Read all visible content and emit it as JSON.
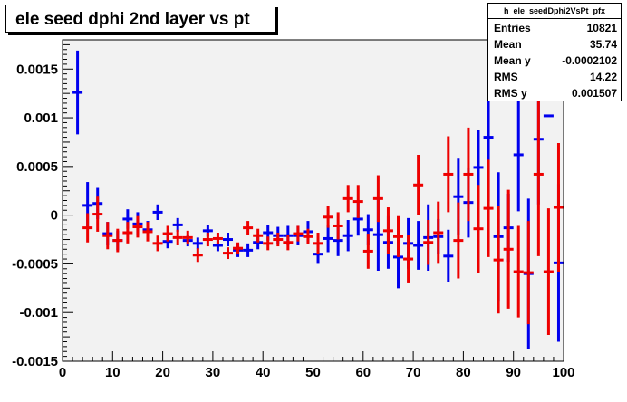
{
  "title": "ele seed dphi 2nd layer vs pt",
  "stats": {
    "name": "h_ele_seedDphi2VsPt_pfx",
    "rows": [
      {
        "label": "Entries",
        "value": "10821"
      },
      {
        "label": "Mean",
        "value": "35.74"
      },
      {
        "label": "Mean y",
        "value": "-0.0002102"
      },
      {
        "label": "RMS",
        "value": "14.22"
      },
      {
        "label": "RMS y",
        "value": "0.001507"
      }
    ]
  },
  "colors": {
    "blue": "#0000ee",
    "red": "#ee0000",
    "frame_bg": "#f2f2f2"
  },
  "chart_data": {
    "type": "scatter",
    "title": "ele seed dphi 2nd layer vs pt",
    "xlabel": "",
    "ylabel": "",
    "xlim": [
      0,
      100
    ],
    "ylim": [
      -0.0015,
      0.0018
    ],
    "grid": false,
    "x_tick_labels": [
      "0",
      "10",
      "20",
      "30",
      "40",
      "50",
      "60",
      "70",
      "80",
      "90",
      "100"
    ],
    "y_ticks": [
      {
        "value": -0.0015,
        "label": "-0.0015"
      },
      {
        "value": -0.001,
        "label": "-0.001"
      },
      {
        "value": -0.0005,
        "label": "-0.0005"
      },
      {
        "value": 0,
        "label": "0"
      },
      {
        "value": 0.0005,
        "label": "0.0005"
      },
      {
        "value": 0.001,
        "label": "0.001"
      },
      {
        "value": 0.0015,
        "label": "0.0015"
      }
    ],
    "series": [
      {
        "color": "blue",
        "points": [
          {
            "x": 3,
            "y": 0.00126,
            "err": 0.00043
          },
          {
            "x": 5,
            "y": 0.0001,
            "err": 0.00024
          },
          {
            "x": 7,
            "y": 0.00012,
            "err": 0.00016
          },
          {
            "x": 9,
            "y": -0.00019,
            "err": 0.00012
          },
          {
            "x": 11,
            "y": -0.00026,
            "err": 0.0001
          },
          {
            "x": 13,
            "y": -4e-05,
            "err": 0.0001
          },
          {
            "x": 15,
            "y": -9e-05,
            "err": 0.00012
          },
          {
            "x": 17,
            "y": -0.00015,
            "err": 9e-05
          },
          {
            "x": 19,
            "y": 3e-05,
            "err": 8e-05
          },
          {
            "x": 21,
            "y": -0.00027,
            "err": 7e-05
          },
          {
            "x": 23,
            "y": -0.0001,
            "err": 7e-05
          },
          {
            "x": 25,
            "y": -0.00026,
            "err": 6e-05
          },
          {
            "x": 27,
            "y": -0.00029,
            "err": 6e-05
          },
          {
            "x": 29,
            "y": -0.00016,
            "err": 6e-05
          },
          {
            "x": 31,
            "y": -0.00031,
            "err": 6e-05
          },
          {
            "x": 33,
            "y": -0.00025,
            "err": 7e-05
          },
          {
            "x": 35,
            "y": -0.00036,
            "err": 7e-05
          },
          {
            "x": 37,
            "y": -0.00036,
            "err": 7e-05
          },
          {
            "x": 39,
            "y": -0.00028,
            "err": 7e-05
          },
          {
            "x": 41,
            "y": -0.00018,
            "err": 8e-05
          },
          {
            "x": 43,
            "y": -0.00021,
            "err": 9e-05
          },
          {
            "x": 45,
            "y": -0.00021,
            "err": 0.0001
          },
          {
            "x": 47,
            "y": -0.00021,
            "err": 0.0001
          },
          {
            "x": 49,
            "y": -0.00017,
            "err": 0.00011
          },
          {
            "x": 51,
            "y": -0.0004,
            "err": 0.0001
          },
          {
            "x": 53,
            "y": -0.00024,
            "err": 0.00014
          },
          {
            "x": 55,
            "y": -0.00026,
            "err": 0.00016
          },
          {
            "x": 57,
            "y": -0.00021,
            "err": 0.00016
          },
          {
            "x": 59,
            "y": -4e-05,
            "err": 0.00017
          },
          {
            "x": 61,
            "y": -0.00015,
            "err": 0.00016
          },
          {
            "x": 63,
            "y": -0.0002,
            "err": 0.00037
          },
          {
            "x": 65,
            "y": -0.00028,
            "err": 0.00027
          },
          {
            "x": 67,
            "y": -0.00043,
            "err": 0.00032
          },
          {
            "x": 69,
            "y": -0.00029,
            "err": 0.00026
          },
          {
            "x": 71,
            "y": -0.00031,
            "err": 0.00025
          },
          {
            "x": 73,
            "y": -0.00023,
            "err": 0.00034
          },
          {
            "x": 75,
            "y": -0.00022,
            "err": 0.00018
          },
          {
            "x": 77,
            "y": -0.00042,
            "err": 0.00027
          },
          {
            "x": 79,
            "y": 0.00019,
            "err": 0.00039
          },
          {
            "x": 81,
            "y": 0.00013,
            "err": 0.00036
          },
          {
            "x": 83,
            "y": 0.00049,
            "err": 0.00038
          },
          {
            "x": 85,
            "y": 0.0008,
            "err": 0.00066
          },
          {
            "x": 87,
            "y": -0.00022,
            "err": 0.00066
          },
          {
            "x": 89,
            "y": -0.00013,
            "err": 0.00035
          },
          {
            "x": 91,
            "y": 0.00062,
            "err": 0.00058
          },
          {
            "x": 93,
            "y": -0.0006,
            "err": 0.00077
          },
          {
            "x": 95,
            "y": 0.00078,
            "err": 0.00067
          },
          {
            "x": 97,
            "y": 0.00102,
            "err": 0.0
          },
          {
            "x": 99,
            "y": -0.00049,
            "err": 0.00081
          }
        ]
      },
      {
        "color": "red",
        "points": [
          {
            "x": 5,
            "y": -0.00013,
            "err": 0.00015
          },
          {
            "x": 7,
            "y": 1e-05,
            "err": 0.00018
          },
          {
            "x": 9,
            "y": -0.00021,
            "err": 0.00014
          },
          {
            "x": 11,
            "y": -0.00026,
            "err": 0.00012
          },
          {
            "x": 13,
            "y": -0.00018,
            "err": 0.00011
          },
          {
            "x": 15,
            "y": -0.00012,
            "err": 0.00011
          },
          {
            "x": 17,
            "y": -0.00017,
            "err": 0.0001
          },
          {
            "x": 19,
            "y": -0.00029,
            "err": 8e-05
          },
          {
            "x": 21,
            "y": -0.00019,
            "err": 8e-05
          },
          {
            "x": 23,
            "y": -0.00023,
            "err": 8e-05
          },
          {
            "x": 25,
            "y": -0.00023,
            "err": 7e-05
          },
          {
            "x": 27,
            "y": -0.00041,
            "err": 7e-05
          },
          {
            "x": 29,
            "y": -0.00025,
            "err": 7e-05
          },
          {
            "x": 31,
            "y": -0.00024,
            "err": 6e-05
          },
          {
            "x": 33,
            "y": -0.00039,
            "err": 6e-05
          },
          {
            "x": 35,
            "y": -0.00034,
            "err": 6e-05
          },
          {
            "x": 37,
            "y": -0.00013,
            "err": 7e-05
          },
          {
            "x": 39,
            "y": -0.00021,
            "err": 7e-05
          },
          {
            "x": 41,
            "y": -0.00029,
            "err": 7e-05
          },
          {
            "x": 43,
            "y": -0.00025,
            "err": 7e-05
          },
          {
            "x": 45,
            "y": -0.00028,
            "err": 8e-05
          },
          {
            "x": 47,
            "y": -0.00019,
            "err": 8e-05
          },
          {
            "x": 49,
            "y": -0.00022,
            "err": 8e-05
          },
          {
            "x": 51,
            "y": -0.00029,
            "err": 0.00011
          },
          {
            "x": 53,
            "y": -2e-05,
            "err": 0.00011
          },
          {
            "x": 55,
            "y": -0.00011,
            "err": 0.00014
          },
          {
            "x": 57,
            "y": 0.00017,
            "err": 0.00014
          },
          {
            "x": 59,
            "y": 0.00014,
            "err": 0.00017
          },
          {
            "x": 61,
            "y": -0.00037,
            "err": 0.00018
          },
          {
            "x": 63,
            "y": 0.00017,
            "err": 0.00024
          },
          {
            "x": 65,
            "y": -0.00016,
            "err": 0.00024
          },
          {
            "x": 67,
            "y": -0.00022,
            "err": 0.00021
          },
          {
            "x": 69,
            "y": -0.00045,
            "err": 0.00025
          },
          {
            "x": 71,
            "y": 0.00031,
            "err": 0.00031
          },
          {
            "x": 73,
            "y": -0.00028,
            "err": 0.00023
          },
          {
            "x": 75,
            "y": -0.00018,
            "err": 0.00032
          },
          {
            "x": 77,
            "y": 0.00042,
            "err": 0.00039
          },
          {
            "x": 79,
            "y": -0.00026,
            "err": 0.00039
          },
          {
            "x": 81,
            "y": 0.00042,
            "err": 0.00048
          },
          {
            "x": 83,
            "y": -0.00014,
            "err": 0.00045
          },
          {
            "x": 85,
            "y": 7e-05,
            "err": 0.0005
          },
          {
            "x": 87,
            "y": -0.00046,
            "err": 0.00055
          },
          {
            "x": 89,
            "y": -0.00035,
            "err": 0.00061
          },
          {
            "x": 91,
            "y": -0.00058,
            "err": 0.00047
          },
          {
            "x": 93,
            "y": -0.00059,
            "err": 0.00053
          },
          {
            "x": 95,
            "y": 0.00042,
            "err": 0.00084
          },
          {
            "x": 97,
            "y": -0.00058,
            "err": 0.00065
          },
          {
            "x": 99,
            "y": 8e-05,
            "err": 0.00066
          }
        ]
      }
    ]
  }
}
